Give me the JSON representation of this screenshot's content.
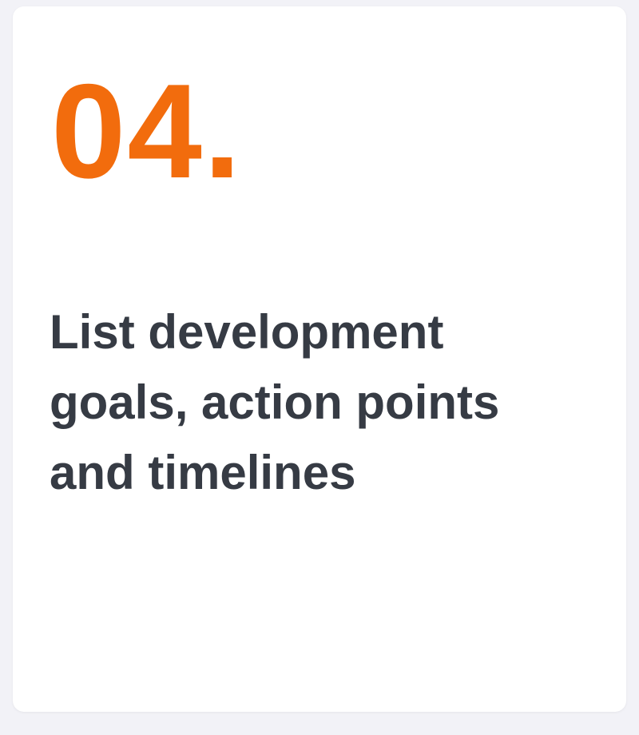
{
  "card": {
    "number": "04.",
    "text": "List development goals, action points and timelines"
  },
  "colors": {
    "accent": "#f26c0d",
    "text": "#363b44",
    "background": "#f2f2f7",
    "card": "#ffffff"
  }
}
